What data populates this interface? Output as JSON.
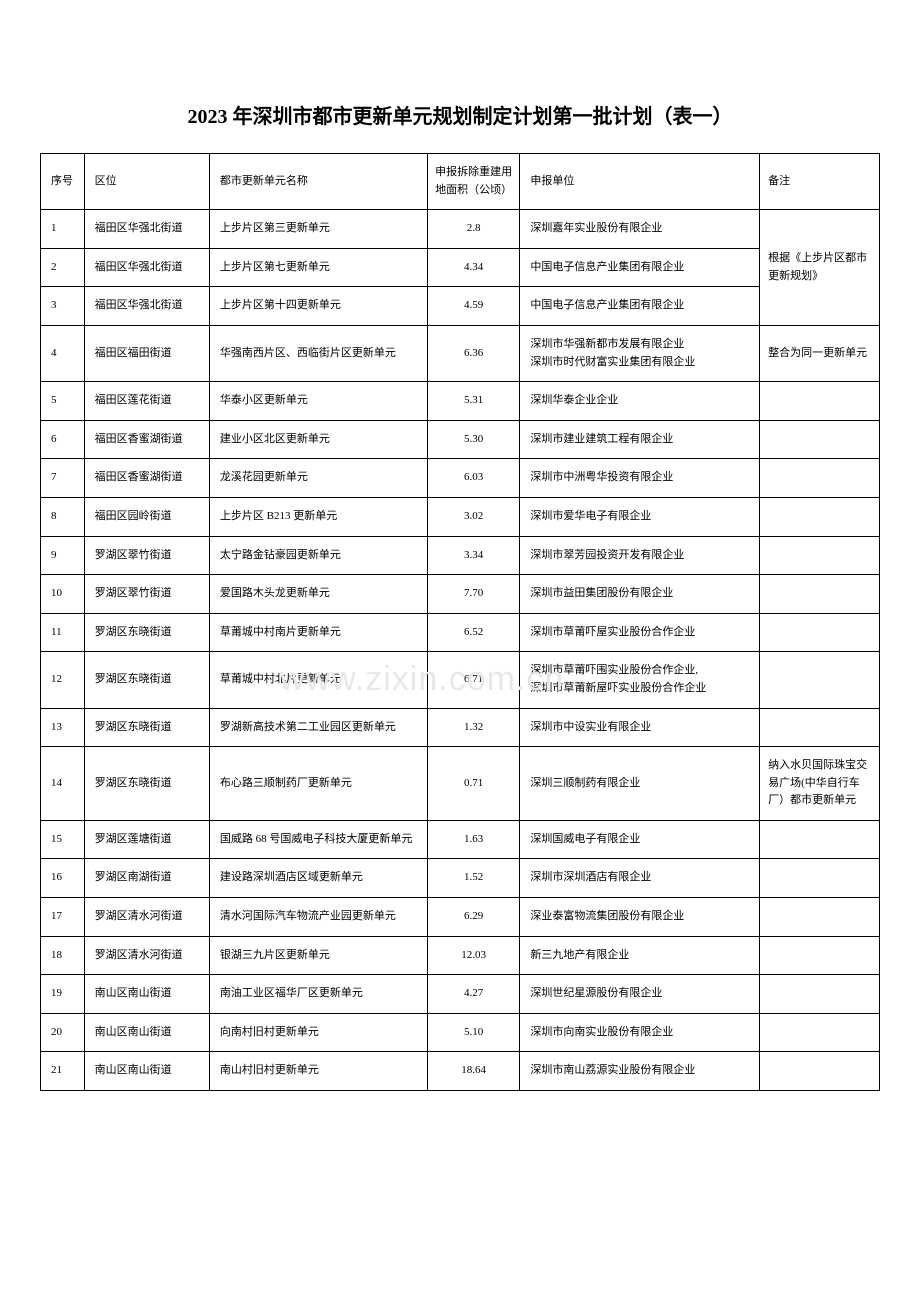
{
  "title": "2023 年深圳市都市更新单元规划制定计划第一批计划（表一）",
  "watermark": "www.zixin.com.cn",
  "table": {
    "columns": [
      {
        "label": "序号"
      },
      {
        "label": "区位"
      },
      {
        "label": "都市更新单元名称"
      },
      {
        "label": "申报拆除重建用地面积（公顷）"
      },
      {
        "label": "申报单位"
      },
      {
        "label": "备注"
      }
    ],
    "rows": [
      {
        "seq": "1",
        "loc": "福田区华强北街道",
        "name": "上步片区第三更新单元",
        "area": "2.8",
        "app": "深圳嘉年实业股份有限企业",
        "remark": ""
      },
      {
        "seq": "2",
        "loc": "福田区华强北街道",
        "name": "上步片区第七更新单元",
        "area": "4.34",
        "app": "中国电子信息产业集团有限企业",
        "remark": "根据《上步片区都市更新规划》"
      },
      {
        "seq": "3",
        "loc": "福田区华强北街道",
        "name": "上步片区第十四更新单元",
        "area": "4.59",
        "app": "中国电子信息产业集团有限企业",
        "remark": ""
      },
      {
        "seq": "4",
        "loc": "福田区福田街道",
        "name": "华强南西片区、西临街片区更新单元",
        "area": "6.36",
        "app": "深圳市华强新都市发展有限企业\n深圳市时代财富实业集团有限企业",
        "remark": "整合为同一更新单元"
      },
      {
        "seq": "5",
        "loc": "福田区莲花街道",
        "name": "华泰小区更新单元",
        "area": "5.31",
        "app": "深圳华泰企业企业",
        "remark": ""
      },
      {
        "seq": "6",
        "loc": "福田区香蜜湖街道",
        "name": "建业小区北区更新单元",
        "area": "5.30",
        "app": "深圳市建业建筑工程有限企业",
        "remark": ""
      },
      {
        "seq": "7",
        "loc": "福田区香蜜湖街道",
        "name": "龙溪花园更新单元",
        "area": "6.03",
        "app": "深圳市中洲粤华投资有限企业",
        "remark": ""
      },
      {
        "seq": "8",
        "loc": "福田区园岭街道",
        "name": "上步片区 B213 更新单元",
        "area": "3.02",
        "app": "深圳市爱华电子有限企业",
        "remark": ""
      },
      {
        "seq": "9",
        "loc": "罗湖区翠竹街道",
        "name": "太宁路金钻豪园更新单元",
        "area": "3.34",
        "app": "深圳市翠芳园投资开发有限企业",
        "remark": ""
      },
      {
        "seq": "10",
        "loc": "罗湖区翠竹街道",
        "name": "爱国路木头龙更新单元",
        "area": "7.70",
        "app": "深圳市益田集团股份有限企业",
        "remark": ""
      },
      {
        "seq": "11",
        "loc": "罗湖区东晓街道",
        "name": "草莆城中村南片更新单元",
        "area": "6.52",
        "app": "深圳市草莆吓屋实业股份合作企业",
        "remark": ""
      },
      {
        "seq": "12",
        "loc": "罗湖区东晓街道",
        "name": "草莆城中村北片更新单元",
        "area": "6.71",
        "app": "深圳市草莆吓围实业股份合作企业,\n深圳市草莆新屋吓实业股份合作企业",
        "remark": ""
      },
      {
        "seq": "13",
        "loc": "罗湖区东晓街道",
        "name": "罗湖新高技术第二工业园区更新单元",
        "area": "1.32",
        "app": "深圳市中设实业有限企业",
        "remark": ""
      },
      {
        "seq": "14",
        "loc": "罗湖区东晓街道",
        "name": "布心路三顺制药厂更新单元",
        "area": "0.71",
        "app": "深圳三顺制药有限企业",
        "remark": "纳入水贝国际珠宝交易广场(中华自行车厂）都市更新单元"
      },
      {
        "seq": "15",
        "loc": "罗湖区莲塘街道",
        "name": "国威路 68 号国威电子科技大厦更新单元",
        "area": "1.63",
        "app": "深圳国威电子有限企业",
        "remark": ""
      },
      {
        "seq": "16",
        "loc": "罗湖区南湖街道",
        "name": "建设路深圳酒店区域更新单元",
        "area": "1.52",
        "app": "深圳市深圳酒店有限企业",
        "remark": ""
      },
      {
        "seq": "17",
        "loc": "罗湖区清水河街道",
        "name": "清水河国际汽车物流产业园更新单元",
        "area": "6.29",
        "app": "深业泰富物流集团股份有限企业",
        "remark": ""
      },
      {
        "seq": "18",
        "loc": "罗湖区清水河街道",
        "name": "银湖三九片区更新单元",
        "area": "12.03",
        "app": "新三九地产有限企业",
        "remark": ""
      },
      {
        "seq": "19",
        "loc": "南山区南山街道",
        "name": "南油工业区福华厂区更新单元",
        "area": "4.27",
        "app": "深圳世纪星源股份有限企业",
        "remark": ""
      },
      {
        "seq": "20",
        "loc": "南山区南山街道",
        "name": "向南村旧村更新单元",
        "area": "5.10",
        "app": "深圳市向南实业股份有限企业",
        "remark": ""
      },
      {
        "seq": "21",
        "loc": "南山区南山街道",
        "name": "南山村旧村更新单元",
        "area": "18.64",
        "app": "深圳市南山荔源实业股份有限企业",
        "remark": ""
      }
    ],
    "remark_merges": {
      "start_1": {
        "rowspan": 3,
        "covers": [
          1,
          2,
          3
        ]
      }
    }
  }
}
